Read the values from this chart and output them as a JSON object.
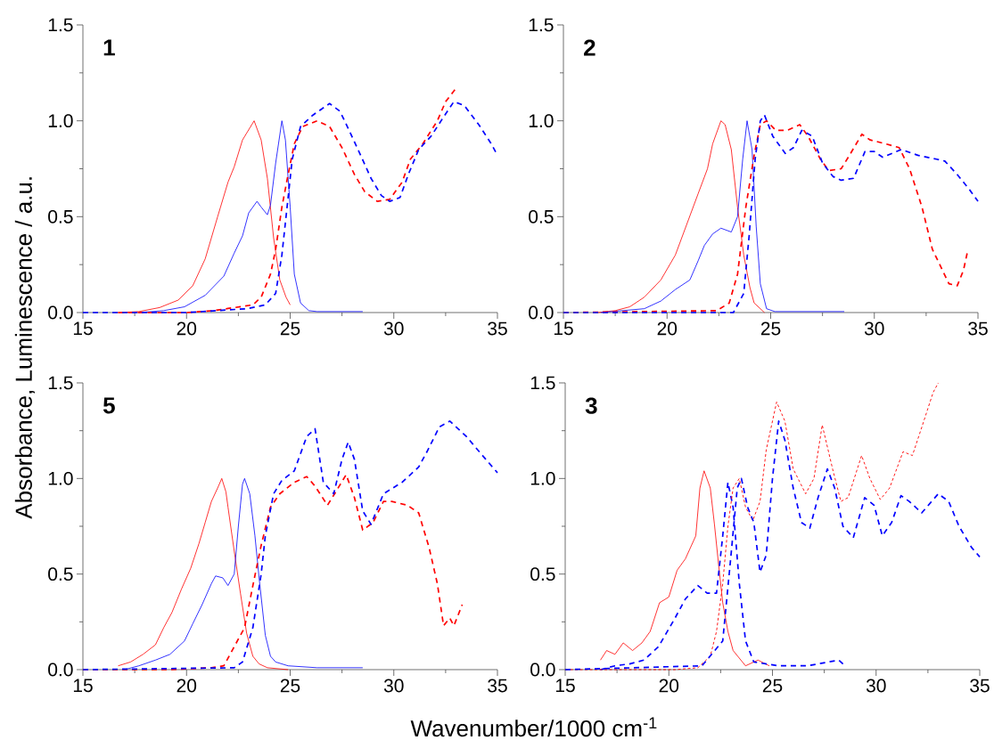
{
  "chart_data": [
    {
      "type": "line",
      "ylabel": "Absorbance, Luminescence / a.u.",
      "annotations": [
        "1"
      ],
      "xlim": [
        15,
        35
      ],
      "ylim": [
        0,
        1.5
      ],
      "xticks": [
        15,
        {
          "value": 17.5,
          "label": null
        },
        20,
        {
          "value": 22.5,
          "label": null
        },
        25,
        {
          "value": 27.5,
          "label": null
        },
        30,
        {
          "value": 32.5,
          "label": null
        },
        35
      ],
      "yticks": [
        {
          "value": 0,
          "label": "0.0"
        },
        {
          "value": 0.25,
          "label": null
        },
        {
          "value": 0.5,
          "label": "0.5"
        },
        {
          "value": 0.75,
          "label": null
        },
        {
          "value": 1.0,
          "label": "1.0"
        },
        {
          "value": 1.25,
          "label": null
        },
        {
          "value": 1.5,
          "label": "1.5"
        }
      ],
      "series": [
        {
          "color": "#ff0000",
          "line_style": "solid",
          "x": [
            16.7,
            17.7,
            18.7,
            19.6,
            20.3,
            20.9,
            21.5,
            22.0,
            22.3,
            22.7,
            23.26,
            23.6,
            23.9,
            24.2,
            24.5,
            24.8,
            25.0
          ],
          "values": [
            0,
            0.005,
            0.026,
            0.065,
            0.14,
            0.28,
            0.5,
            0.68,
            0.76,
            0.9,
            1.0,
            0.9,
            0.7,
            0.39,
            0.17,
            0.08,
            0.04
          ]
        },
        {
          "color": "#0000ff",
          "line_style": "solid",
          "x": [
            17.7,
            18.9,
            19.9,
            20.9,
            21.8,
            22.3,
            22.7,
            23.0,
            23.4,
            23.6,
            23.9,
            24.05,
            24.3,
            24.6,
            24.77,
            25.0,
            25.2,
            25.5,
            25.9,
            26.3,
            28.5
          ],
          "values": [
            0,
            0.01,
            0.03,
            0.09,
            0.19,
            0.31,
            0.4,
            0.52,
            0.58,
            0.55,
            0.51,
            0.56,
            0.78,
            1.0,
            0.9,
            0.55,
            0.2,
            0.05,
            0.01,
            0.005,
            0.005
          ]
        },
        {
          "color": "#ff0000",
          "line_style": "dashed",
          "x": [
            16.7,
            20.0,
            21.3,
            23.2,
            23.6,
            24.05,
            24.3,
            24.6,
            24.9,
            25.2,
            25.6,
            26.3,
            26.9,
            27.5,
            28.1,
            28.6,
            29.2,
            29.8,
            30.4,
            30.8,
            31.4,
            32.1,
            32.5,
            33.0
          ],
          "values": [
            0,
            0,
            0.01,
            0.04,
            0.08,
            0.2,
            0.33,
            0.55,
            0.72,
            0.88,
            0.97,
            1.0,
            0.97,
            0.86,
            0.72,
            0.63,
            0.58,
            0.59,
            0.68,
            0.8,
            0.88,
            1.0,
            1.1,
            1.17
          ]
        },
        {
          "color": "#0000ff",
          "line_style": "dashed",
          "x": [
            15,
            20.0,
            22.9,
            23.8,
            24.3,
            24.6,
            24.9,
            25.1,
            25.5,
            26.1,
            26.9,
            27.4,
            27.8,
            28.4,
            28.9,
            29.4,
            29.8,
            30.3,
            30.7,
            31.2,
            31.8,
            32.4,
            32.9,
            33.4,
            34.1,
            34.7,
            35.0
          ],
          "values": [
            0,
            0,
            0.02,
            0.04,
            0.1,
            0.3,
            0.6,
            0.8,
            0.97,
            1.03,
            1.09,
            1.05,
            0.96,
            0.82,
            0.7,
            0.61,
            0.58,
            0.6,
            0.72,
            0.85,
            0.92,
            1.02,
            1.1,
            1.08,
            0.98,
            0.88,
            0.82
          ]
        }
      ]
    },
    {
      "type": "line",
      "annotations": [
        "2"
      ],
      "xlim": [
        15,
        35
      ],
      "ylim": [
        0,
        1.5
      ],
      "xticks": [
        15,
        {
          "value": 17.5,
          "label": null
        },
        20,
        {
          "value": 22.5,
          "label": null
        },
        25,
        {
          "value": 27.5,
          "label": null
        },
        30,
        {
          "value": 32.5,
          "label": null
        },
        35
      ],
      "yticks": [
        {
          "value": 0,
          "label": "0.0"
        },
        {
          "value": 0.25,
          "label": null
        },
        {
          "value": 0.5,
          "label": "0.5"
        },
        {
          "value": 0.75,
          "label": null
        },
        {
          "value": 1.0,
          "label": "1.0"
        },
        {
          "value": 1.25,
          "label": null
        },
        {
          "value": 1.5,
          "label": "1.5"
        }
      ],
      "series": [
        {
          "color": "#ff0000",
          "line_style": "solid",
          "x": [
            16.65,
            17.5,
            18.2,
            18.9,
            19.7,
            20.4,
            20.95,
            21.5,
            21.95,
            22.2,
            22.6,
            22.8,
            23.1,
            23.4,
            23.7,
            24.0,
            24.2,
            24.7
          ],
          "values": [
            0,
            0.01,
            0.03,
            0.08,
            0.17,
            0.3,
            0.46,
            0.62,
            0.75,
            0.88,
            1.0,
            0.98,
            0.85,
            0.55,
            0.3,
            0.13,
            0.05,
            0
          ]
        },
        {
          "color": "#0000ff",
          "line_style": "solid",
          "x": [
            16.8,
            18.9,
            19.7,
            20.4,
            21.1,
            21.5,
            21.8,
            22.2,
            22.6,
            23.1,
            23.4,
            23.65,
            23.86,
            24.1,
            24.3,
            24.5,
            24.8,
            25.2,
            28.55
          ],
          "values": [
            0,
            0.02,
            0.06,
            0.12,
            0.17,
            0.27,
            0.35,
            0.41,
            0.44,
            0.42,
            0.5,
            0.8,
            1.0,
            0.85,
            0.45,
            0.15,
            0.02,
            0.005,
            0.005
          ]
        },
        {
          "color": "#ff0000",
          "line_style": "dashed",
          "x": [
            15,
            22.4,
            23.0,
            23.4,
            23.8,
            24.2,
            24.5,
            24.8,
            25.25,
            25.8,
            26.4,
            26.8,
            27.4,
            27.8,
            28.4,
            28.8,
            29.4,
            29.8,
            30.55,
            31.2,
            31.7,
            32.3,
            32.8,
            33.6,
            34.0,
            34.3,
            34.5
          ],
          "values": [
            0,
            0.01,
            0.05,
            0.2,
            0.55,
            0.82,
            0.98,
            1.0,
            0.95,
            0.95,
            0.98,
            0.92,
            0.8,
            0.74,
            0.75,
            0.82,
            0.93,
            0.9,
            0.88,
            0.86,
            0.75,
            0.55,
            0.33,
            0.15,
            0.14,
            0.22,
            0.32
          ]
        },
        {
          "color": "#0000ff",
          "line_style": "dashed",
          "x": [
            15,
            23.2,
            23.7,
            23.96,
            24.25,
            24.5,
            24.7,
            25.1,
            25.7,
            26.1,
            26.5,
            27.0,
            27.5,
            28.0,
            28.4,
            29.0,
            29.55,
            30.0,
            30.4,
            31.3,
            32.1,
            33.0,
            33.4,
            34.0,
            34.6,
            35.0
          ],
          "values": [
            0,
            0,
            0.1,
            0.4,
            0.8,
            1.0,
            1.03,
            0.92,
            0.83,
            0.86,
            0.95,
            0.92,
            0.78,
            0.71,
            0.69,
            0.7,
            0.84,
            0.84,
            0.81,
            0.85,
            0.82,
            0.8,
            0.79,
            0.72,
            0.64,
            0.58
          ]
        }
      ]
    },
    {
      "type": "line",
      "annotations": [
        "5"
      ],
      "xlim": [
        15,
        35
      ],
      "ylim": [
        0,
        1.5
      ],
      "xticks": [
        15,
        {
          "value": 17.5,
          "label": null
        },
        20,
        {
          "value": 22.5,
          "label": null
        },
        25,
        {
          "value": 27.5,
          "label": null
        },
        30,
        {
          "value": 32.5,
          "label": null
        },
        35
      ],
      "yticks": [
        {
          "value": 0,
          "label": "0.0"
        },
        {
          "value": 0.25,
          "label": null
        },
        {
          "value": 0.5,
          "label": "0.5"
        },
        {
          "value": 0.75,
          "label": null
        },
        {
          "value": 1.0,
          "label": "1.0"
        },
        {
          "value": 1.25,
          "label": null
        },
        {
          "value": 1.5,
          "label": "1.5"
        }
      ],
      "series": [
        {
          "color": "#ff0000",
          "line_style": "solid",
          "x": [
            16.7,
            17.3,
            17.9,
            18.5,
            18.9,
            19.3,
            19.75,
            20.2,
            20.6,
            20.9,
            21.2,
            21.5,
            21.7,
            21.9,
            22.0,
            22.3,
            22.6,
            22.9,
            23.2,
            23.5,
            23.9,
            24.9
          ],
          "values": [
            0.02,
            0.04,
            0.08,
            0.13,
            0.22,
            0.3,
            0.42,
            0.53,
            0.66,
            0.77,
            0.88,
            0.95,
            1.0,
            0.93,
            0.85,
            0.62,
            0.4,
            0.19,
            0.07,
            0.03,
            0.01,
            0
          ]
        },
        {
          "color": "#0000ff",
          "line_style": "solid",
          "x": [
            17.0,
            17.7,
            18.5,
            19.2,
            19.9,
            20.3,
            20.75,
            21.2,
            21.4,
            21.75,
            22.0,
            22.3,
            22.5,
            22.7,
            22.8,
            23.05,
            23.3,
            23.5,
            23.8,
            24.05,
            24.3,
            24.9,
            26.3,
            27.8,
            28.5
          ],
          "values": [
            0,
            0.02,
            0.05,
            0.08,
            0.15,
            0.24,
            0.34,
            0.45,
            0.49,
            0.48,
            0.44,
            0.5,
            0.75,
            0.97,
            1.0,
            0.92,
            0.7,
            0.48,
            0.18,
            0.07,
            0.04,
            0.02,
            0.01,
            0.01,
            0.01
          ]
        },
        {
          "color": "#ff0000",
          "line_style": "dashed",
          "x": [
            15,
            19.2,
            21.2,
            21.8,
            22.3,
            22.8,
            23.2,
            23.6,
            24.05,
            24.5,
            25.2,
            25.8,
            26.2,
            26.8,
            27.2,
            27.7,
            28.1,
            28.5,
            29.0,
            29.5,
            29.9,
            30.65,
            31.2,
            31.7,
            32.1,
            32.4,
            32.7,
            32.9,
            33.3
          ],
          "values": [
            0,
            0,
            0.01,
            0.02,
            0.12,
            0.22,
            0.44,
            0.65,
            0.85,
            0.92,
            0.98,
            1.01,
            0.96,
            0.86,
            0.93,
            1.02,
            0.9,
            0.73,
            0.77,
            0.88,
            0.88,
            0.86,
            0.82,
            0.64,
            0.45,
            0.23,
            0.27,
            0.23,
            0.34
          ]
        },
        {
          "color": "#0000ff",
          "line_style": "dashed",
          "x": [
            15,
            22.3,
            22.7,
            23.2,
            23.6,
            23.8,
            24.2,
            24.6,
            25.2,
            25.8,
            26.2,
            26.6,
            27.1,
            27.5,
            27.8,
            28.1,
            28.5,
            28.9,
            29.5,
            30.4,
            31.2,
            31.6,
            32.2,
            32.7,
            33.5,
            34.2,
            35.0
          ],
          "values": [
            0,
            0.01,
            0.04,
            0.22,
            0.5,
            0.7,
            0.92,
            0.99,
            1.04,
            1.22,
            1.26,
            0.98,
            0.92,
            1.1,
            1.19,
            1.1,
            0.83,
            0.76,
            0.92,
            0.98,
            1.06,
            1.14,
            1.27,
            1.3,
            1.22,
            1.13,
            1.03
          ]
        }
      ]
    },
    {
      "type": "line",
      "xlabel": "Wavenumber/1000 cm$^{-1}$",
      "annotations": [
        "3"
      ],
      "xlim": [
        15,
        35
      ],
      "ylim": [
        0,
        1.5
      ],
      "xticks": [
        15,
        {
          "value": 17.5,
          "label": null
        },
        20,
        {
          "value": 22.5,
          "label": null
        },
        25,
        {
          "value": 27.5,
          "label": null
        },
        30,
        {
          "value": 32.5,
          "label": null
        },
        35
      ],
      "yticks": [
        {
          "value": 0,
          "label": "0.0"
        },
        {
          "value": 0.25,
          "label": null
        },
        {
          "value": 0.5,
          "label": "0.5"
        },
        {
          "value": 0.75,
          "label": null
        },
        {
          "value": 1.0,
          "label": "1.0"
        },
        {
          "value": 1.25,
          "label": null
        },
        {
          "value": 1.5,
          "label": "1.5"
        }
      ],
      "series": [
        {
          "color": "#ff0000",
          "line_style": "solid",
          "x": [
            16.7,
            17.0,
            17.4,
            17.8,
            18.25,
            18.7,
            19.1,
            19.55,
            20.0,
            20.4,
            20.8,
            21.3,
            21.5,
            21.7,
            22.0,
            22.2,
            22.4,
            22.6,
            22.85,
            23.1,
            23.7,
            24.3,
            24.85
          ],
          "values": [
            0.05,
            0.1,
            0.08,
            0.14,
            0.1,
            0.14,
            0.2,
            0.35,
            0.38,
            0.52,
            0.58,
            0.7,
            0.95,
            1.04,
            0.95,
            0.76,
            0.55,
            0.35,
            0.2,
            0.1,
            0.02,
            0.05,
            0.02
          ]
        },
        {
          "color": "#0000ff",
          "line_style": "dashed",
          "x": [
            16.7,
            17.4,
            18.1,
            18.8,
            19.5,
            20.3,
            20.8,
            21.4,
            21.85,
            22.3,
            22.6,
            22.85,
            23.1,
            23.4,
            23.7,
            24.1,
            25.3,
            26.7,
            28.2,
            28.5
          ],
          "values": [
            0,
            0.02,
            0.03,
            0.05,
            0.12,
            0.27,
            0.37,
            0.44,
            0.4,
            0.4,
            0.7,
            0.98,
            0.85,
            0.45,
            0.15,
            0.04,
            0.02,
            0.02,
            0.05,
            0.02
          ]
        },
        {
          "color": "#ff0000",
          "line_style": "dotted",
          "x": [
            15,
            20.3,
            21.4,
            22.0,
            22.3,
            22.6,
            22.85,
            23.1,
            23.4,
            23.7,
            24.05,
            24.4,
            24.7,
            25.2,
            25.6,
            26.0,
            26.6,
            27.0,
            27.4,
            27.9,
            28.3,
            28.65,
            29.3,
            29.7,
            30.2,
            30.65,
            31.3,
            31.75,
            32.3,
            32.75,
            33.0
          ],
          "values": [
            0,
            0,
            0.01,
            0.07,
            0.2,
            0.45,
            0.75,
            0.95,
            1.0,
            0.85,
            0.78,
            0.88,
            1.15,
            1.4,
            1.3,
            1.05,
            0.92,
            1.0,
            1.28,
            1.05,
            0.88,
            0.9,
            1.12,
            1.0,
            0.89,
            0.95,
            1.14,
            1.12,
            1.3,
            1.45,
            1.5
          ]
        },
        {
          "color": "#0000ff",
          "line_style": "dashed",
          "x": [
            15,
            21.6,
            22.6,
            23.0,
            23.3,
            23.5,
            23.8,
            24.1,
            24.4,
            24.7,
            25.0,
            25.3,
            25.6,
            26.0,
            26.4,
            26.8,
            27.2,
            27.65,
            28.0,
            28.4,
            28.9,
            29.45,
            29.9,
            30.3,
            30.75,
            31.2,
            31.6,
            32.2,
            33.0,
            33.5,
            34.0,
            34.6,
            35.0
          ],
          "values": [
            0,
            0.02,
            0.15,
            0.6,
            0.95,
            1.0,
            0.85,
            0.77,
            0.51,
            0.6,
            1.0,
            1.3,
            1.2,
            0.95,
            0.77,
            0.74,
            0.9,
            1.05,
            0.95,
            0.75,
            0.69,
            0.9,
            0.86,
            0.7,
            0.77,
            0.91,
            0.88,
            0.82,
            0.92,
            0.88,
            0.75,
            0.64,
            0.59
          ]
        }
      ]
    }
  ]
}
